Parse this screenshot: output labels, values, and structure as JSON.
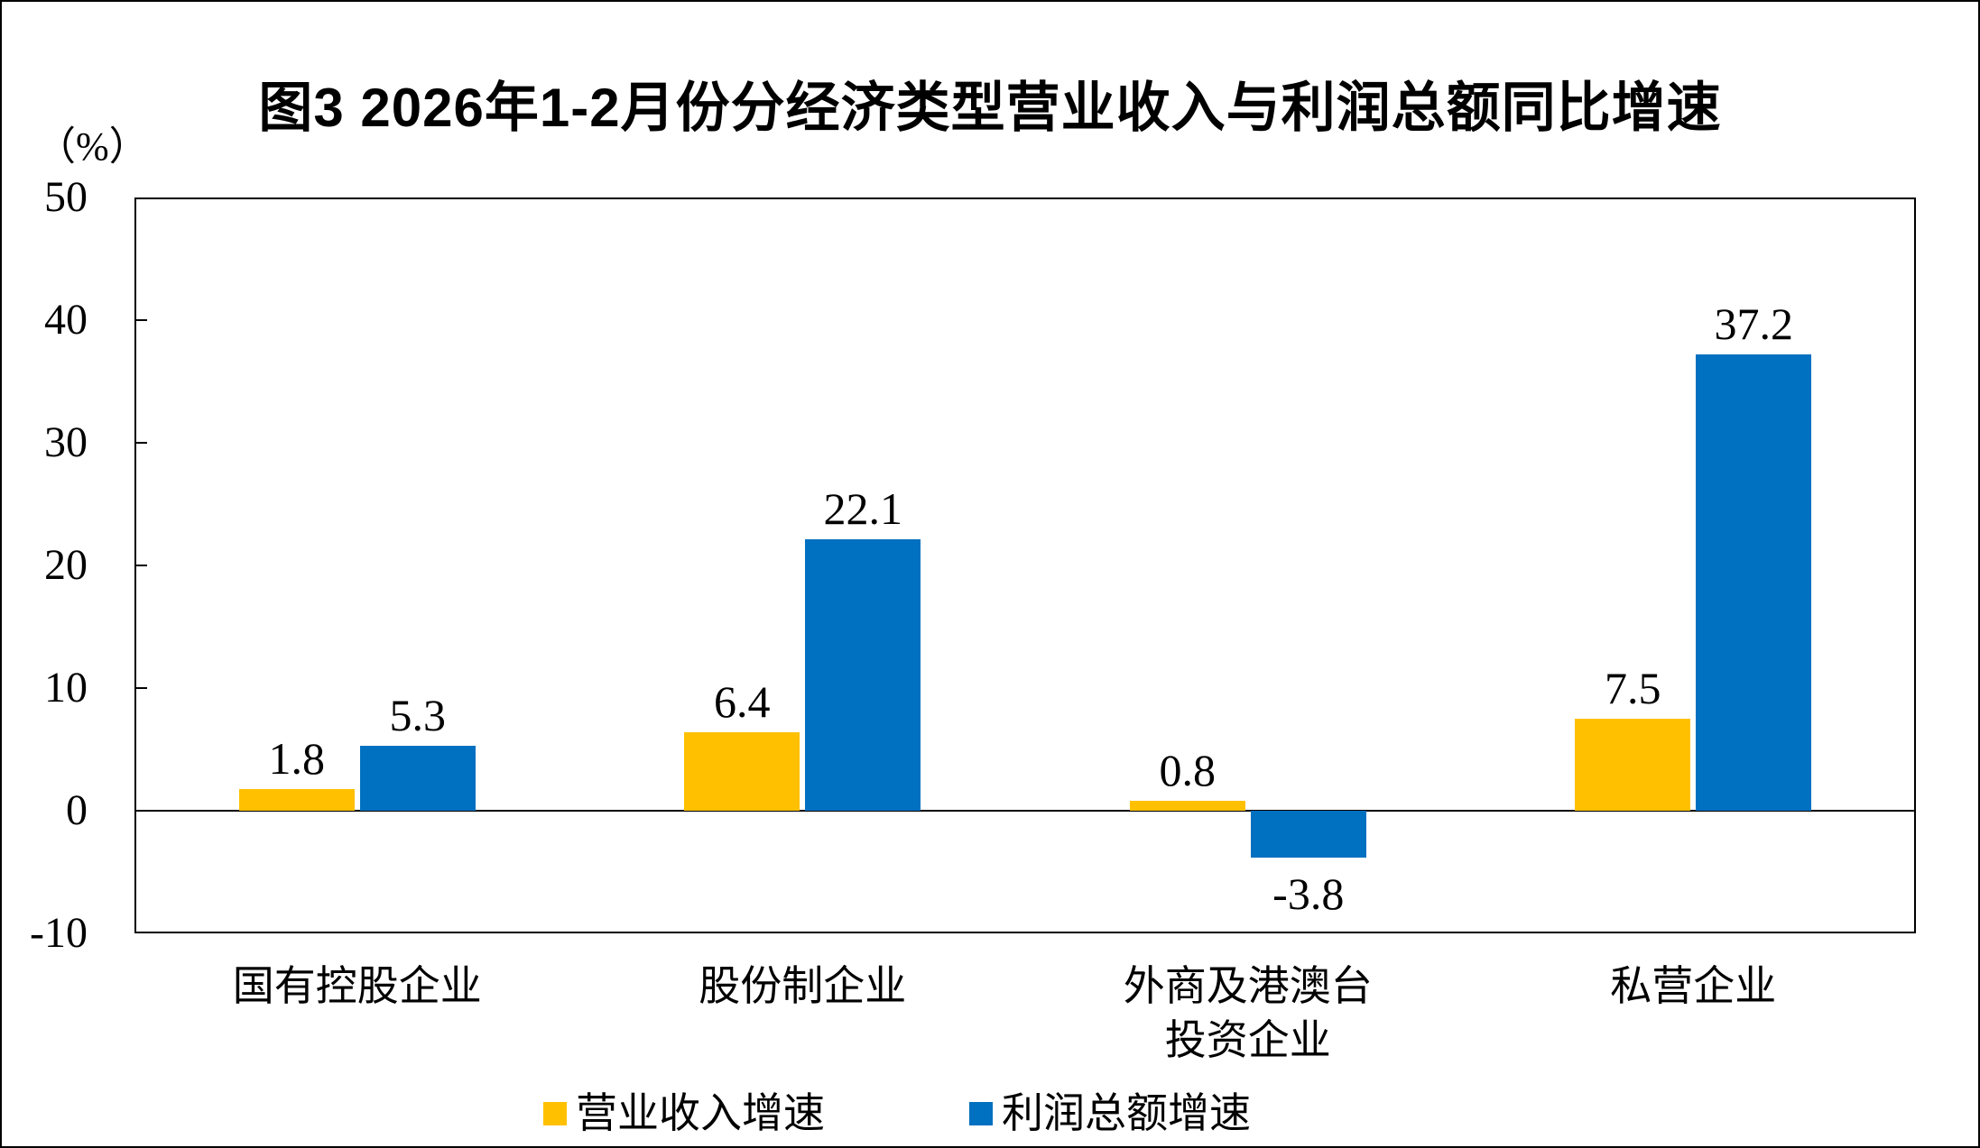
{
  "figure": {
    "title": "图3 2026年1-2月份分经济类型营业收入与利润总额同比增速",
    "unit_label": "（%）"
  },
  "chart_data": {
    "type": "bar",
    "title": "图3 2026年1-2月份分经济类型营业收入与利润总额同比增速",
    "xlabel": "",
    "ylabel": "（%）",
    "categories": [
      "国有控股企业",
      "股份制企业",
      "外商及港澳台\n投资企业",
      "私营企业"
    ],
    "series": [
      {
        "name": "营业收入增速",
        "color": "#FFC000",
        "values": [
          1.8,
          6.4,
          0.8,
          7.5
        ]
      },
      {
        "name": "利润总额增速",
        "color": "#0070C0",
        "values": [
          5.3,
          22.1,
          -3.8,
          37.2
        ]
      }
    ],
    "ylim": [
      -10,
      50
    ],
    "yticks": [
      50,
      40,
      30,
      20,
      10,
      0,
      -10
    ],
    "grid": false,
    "zero_line": true,
    "legend_position": "bottom",
    "bar_color_accent": "#FFC000",
    "bar_color_secondary": "#0070C0",
    "axis_color": "#000000"
  }
}
